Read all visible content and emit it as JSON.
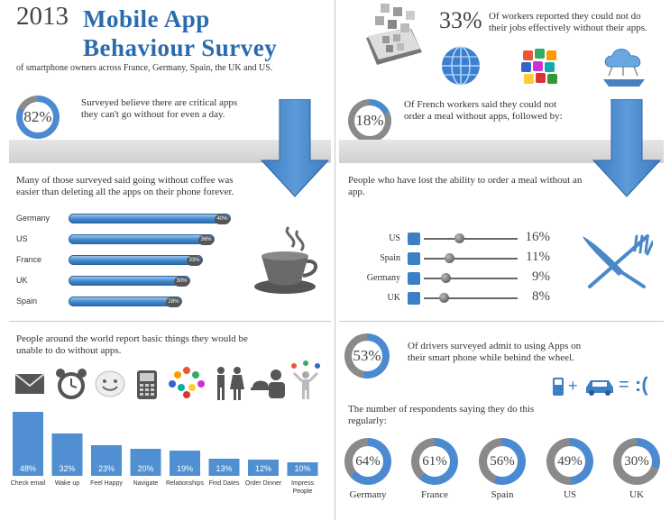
{
  "header": {
    "year": "2013",
    "title_line1": "Mobile App",
    "title_line2": "Behaviour Survey",
    "subtitle": "of smartphone owners across France, Germany, Spain, the UK and US."
  },
  "critical_apps": {
    "percent": "82%",
    "value": 82,
    "text_line1": "Surveyed believe there are critical apps",
    "text_line2": "they can't go without for even a day."
  },
  "coffee": {
    "text_line1": "Many of those surveyed said going without coffee was",
    "text_line2": "easier than deleting all the apps on their phone forever.",
    "bars": [
      {
        "country": "Germany",
        "label": "40%",
        "value": 40
      },
      {
        "country": "US",
        "label": "36%",
        "value": 36
      },
      {
        "country": "France",
        "label": "33%",
        "value": 33
      },
      {
        "country": "UK",
        "label": "30%",
        "value": 30
      },
      {
        "country": "Spain",
        "label": "28%",
        "value": 28
      }
    ]
  },
  "workers": {
    "percent": "33%",
    "text_line1": "Of workers reported they could not do",
    "text_line2": "their jobs effectively without their apps."
  },
  "french_meal": {
    "percent": "18%",
    "value": 18,
    "text_line1": "Of French workers said they could not",
    "text_line2": "order a meal without apps, followed by:",
    "sub_text_line1": "People who have lost the ability to order a meal without an",
    "sub_text_line2": "app.",
    "sliders": [
      {
        "country": "US",
        "label": "16%",
        "value": 16
      },
      {
        "country": "Spain",
        "label": "11%",
        "value": 11
      },
      {
        "country": "Germany",
        "label": "9%",
        "value": 9
      },
      {
        "country": "UK",
        "label": "8%",
        "value": 8
      }
    ]
  },
  "basic_things": {
    "text_line1": "People around the world report basic things they would be",
    "text_line2": "unable to do without apps."
  },
  "chart_data": {
    "type": "bar",
    "categories": [
      "Check email",
      "Wake up",
      "Feel Happy",
      "Navigate",
      "Relationships",
      "Find Dates",
      "Order Dinner",
      "Impress People"
    ],
    "values": [
      48,
      32,
      23,
      20,
      19,
      13,
      12,
      10
    ],
    "labels": [
      "48%",
      "32%",
      "23%",
      "20%",
      "19%",
      "13%",
      "12%",
      "10%"
    ],
    "category_lines": [
      [
        "Check email"
      ],
      [
        "Wake up"
      ],
      [
        "Feel Happy"
      ],
      [
        "Navigate"
      ],
      [
        "Relationships"
      ],
      [
        "Find Dates"
      ],
      [
        "Order Dinner"
      ],
      [
        "Impress",
        "People"
      ]
    ],
    "ylim": [
      0,
      50
    ]
  },
  "drivers": {
    "percent": "53%",
    "value": 53,
    "text_line1": "Of drivers surveyed admit to using Apps on",
    "text_line2": "their smart phone while behind the wheel.",
    "equation_sad": ":(",
    "regular_line1": "The number of respondents saying they do this",
    "regular_line2": "regularly:",
    "donuts": [
      {
        "country": "Germany",
        "label": "64%",
        "value": 64
      },
      {
        "country": "France",
        "label": "61%",
        "value": 61
      },
      {
        "country": "Spain",
        "label": "56%",
        "value": 56
      },
      {
        "country": "US",
        "label": "49%",
        "value": 49
      },
      {
        "country": "UK",
        "label": "30%",
        "value": 30
      }
    ]
  },
  "colors": {
    "accent": "#2a6bb0",
    "bar": "#4f8fd2",
    "ring_gray": "#8a8a8a",
    "ring_blue": "#4b8ad0"
  },
  "icons": [
    "envelope-icon",
    "alarm-clock-icon",
    "smiley-icon",
    "phone-icon",
    "people-icon",
    "couple-icon",
    "dinner-icon",
    "juggler-icon",
    "coffee-cup-icon",
    "fork-knife-icon",
    "globe-icon",
    "apps-cube-icon",
    "cloud-icon",
    "phone-apps-icon",
    "car-icon"
  ]
}
